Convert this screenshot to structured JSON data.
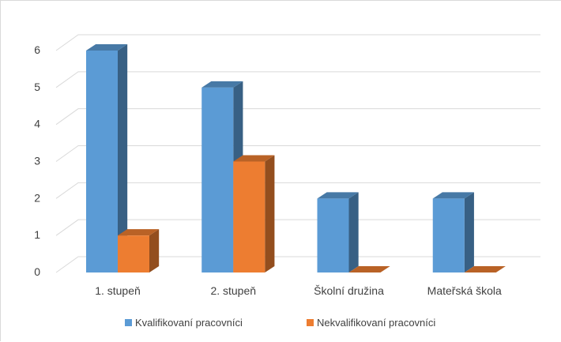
{
  "chart_data": {
    "type": "bar",
    "subtype": "3d-clustered-column",
    "title": "",
    "xlabel": "",
    "ylabel": "",
    "categories": [
      "1. stupeň",
      "2. stupeň",
      "Školní družina",
      "Mateřská škola"
    ],
    "series": [
      {
        "name": "Kvalifikovaní pracovníci",
        "values": [
          6,
          5,
          2,
          2
        ],
        "color": "#5b9bd5"
      },
      {
        "name": "Nekvalifikovaní pracovníci",
        "values": [
          1,
          3,
          0,
          0
        ],
        "color": "#ed7d31"
      }
    ],
    "ylim": [
      0,
      6
    ],
    "yticks": [
      "0",
      "1",
      "2",
      "3",
      "4",
      "5",
      "6"
    ],
    "grid": true,
    "legend_position": "bottom"
  }
}
